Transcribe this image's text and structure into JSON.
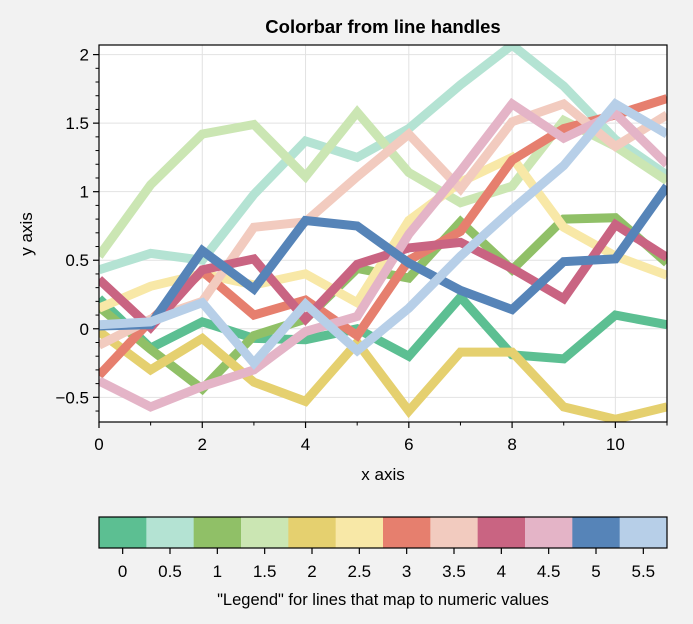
{
  "chart_data": {
    "type": "line",
    "title": "Colorbar from line handles",
    "xlabel": "x axis",
    "ylabel": "y axis",
    "xlim": [
      0,
      11
    ],
    "ylim": [
      -0.68,
      2.07
    ],
    "grid": true,
    "x": [
      0,
      1,
      2,
      3,
      4,
      5,
      6,
      7,
      8,
      9,
      10,
      11
    ],
    "xticks": [
      0,
      2,
      4,
      6,
      8,
      10
    ],
    "xtick_labels": [
      "0",
      "2",
      "4",
      "6",
      "8",
      "10"
    ],
    "yticks": [
      -0.5,
      0,
      0.5,
      1,
      1.5,
      2
    ],
    "ytick_labels": [
      "−0.5",
      "0",
      "0.5",
      "1",
      "1.5",
      "2"
    ],
    "series": [
      {
        "value": 0.0,
        "color": "#5cbf92",
        "values": [
          0.22,
          -0.14,
          0.05,
          -0.07,
          -0.08,
          0.0,
          -0.2,
          0.23,
          -0.19,
          -0.22,
          0.1,
          0.03
        ]
      },
      {
        "value": 0.5,
        "color": "#b4e3d3",
        "values": [
          0.43,
          0.55,
          0.5,
          0.98,
          1.37,
          1.25,
          1.46,
          1.78,
          2.07,
          1.77,
          1.38,
          1.12
        ]
      },
      {
        "value": 1.0,
        "color": "#90c067",
        "values": [
          0.16,
          -0.15,
          -0.44,
          -0.05,
          0.07,
          0.44,
          0.37,
          0.78,
          0.43,
          0.8,
          0.81,
          0.48
        ]
      },
      {
        "value": 1.5,
        "color": "#cbe6b3",
        "values": [
          0.53,
          1.05,
          1.42,
          1.49,
          1.11,
          1.58,
          1.14,
          0.92,
          1.04,
          1.52,
          1.33,
          1.08
        ]
      },
      {
        "value": 2.0,
        "color": "#e5d06f",
        "values": [
          -0.02,
          -0.3,
          -0.07,
          -0.39,
          -0.53,
          -0.1,
          -0.6,
          -0.17,
          -0.17,
          -0.57,
          -0.66,
          -0.57
        ]
      },
      {
        "value": 2.5,
        "color": "#f8e8a7",
        "values": [
          0.15,
          0.31,
          0.4,
          0.32,
          0.4,
          0.19,
          0.79,
          1.07,
          1.25,
          0.74,
          0.53,
          0.39
        ]
      },
      {
        "value": 3.0,
        "color": "#e67f6e",
        "values": [
          -0.34,
          0.06,
          0.42,
          0.1,
          0.21,
          -0.05,
          0.5,
          0.71,
          1.23,
          1.46,
          1.56,
          1.68
        ]
      },
      {
        "value": 3.5,
        "color": "#f2cbbf",
        "values": [
          -0.12,
          0.07,
          0.2,
          0.74,
          0.78,
          1.11,
          1.42,
          1.02,
          1.51,
          1.64,
          1.33,
          1.56
        ]
      },
      {
        "value": 4.0,
        "color": "#c96482",
        "values": [
          0.36,
          0.01,
          0.43,
          0.51,
          0.07,
          0.47,
          0.59,
          0.63,
          0.44,
          0.22,
          0.76,
          0.52
        ]
      },
      {
        "value": 4.5,
        "color": "#e4b4c7",
        "values": [
          -0.38,
          -0.57,
          -0.42,
          -0.3,
          -0.02,
          0.09,
          0.69,
          1.15,
          1.64,
          1.39,
          1.57,
          1.2
        ]
      },
      {
        "value": 5.0,
        "color": "#5684b8",
        "values": [
          0.02,
          0.03,
          0.57,
          0.29,
          0.79,
          0.75,
          0.48,
          0.28,
          0.14,
          0.49,
          0.51,
          1.04
        ]
      },
      {
        "value": 5.5,
        "color": "#b7cfe8",
        "values": [
          0.03,
          0.05,
          0.19,
          -0.25,
          0.18,
          -0.16,
          0.15,
          0.53,
          0.87,
          1.19,
          1.64,
          1.42
        ]
      }
    ],
    "colorbar": {
      "label": "\"Legend\" for lines that map to numeric values",
      "ticks": [
        "0",
        "0.5",
        "1",
        "1.5",
        "2",
        "2.5",
        "3",
        "3.5",
        "4",
        "4.5",
        "5",
        "5.5"
      ],
      "colors": [
        "#5cbf92",
        "#b4e3d3",
        "#90c067",
        "#cbe6b3",
        "#e5d06f",
        "#f8e8a7",
        "#e67f6e",
        "#f2cbbf",
        "#c96482",
        "#e4b4c7",
        "#5684b8",
        "#b7cfe8"
      ]
    }
  }
}
